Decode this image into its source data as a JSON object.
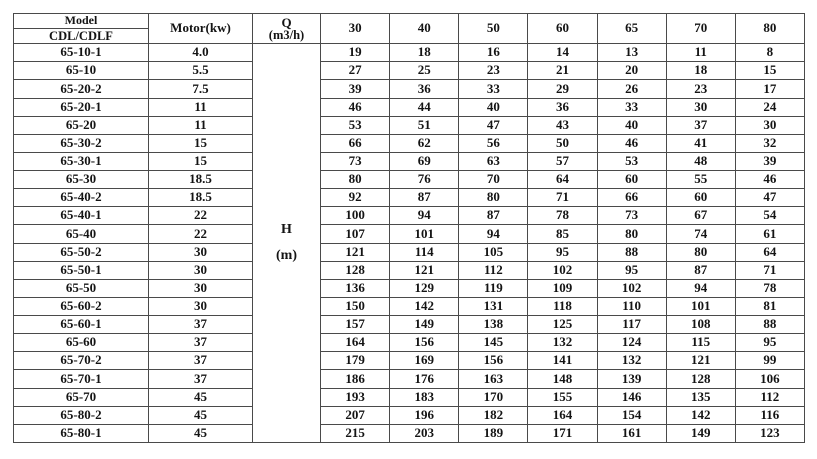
{
  "table": {
    "header": {
      "model_title": "Model",
      "model_subtitle": "CDL/CDLF",
      "motor_label": "Motor(kw)",
      "q_symbol": "Q",
      "q_unit": "(m3/h)",
      "flow_columns": [
        "30",
        "40",
        "50",
        "60",
        "65",
        "70",
        "80"
      ]
    },
    "head_cell": {
      "symbol": "H",
      "unit": "(m)"
    },
    "rows": [
      {
        "model": "65-10-1",
        "motor": "4.0",
        "values": [
          19,
          18,
          16,
          14,
          13,
          11,
          8
        ]
      },
      {
        "model": "65-10",
        "motor": "5.5",
        "values": [
          27,
          25,
          23,
          21,
          20,
          18,
          15
        ]
      },
      {
        "model": "65-20-2",
        "motor": "7.5",
        "values": [
          39,
          36,
          33,
          29,
          26,
          23,
          17
        ]
      },
      {
        "model": "65-20-1",
        "motor": "11",
        "values": [
          46,
          44,
          40,
          36,
          33,
          30,
          24
        ]
      },
      {
        "model": "65-20",
        "motor": "11",
        "values": [
          53,
          51,
          47,
          43,
          40,
          37,
          30
        ]
      },
      {
        "model": "65-30-2",
        "motor": "15",
        "values": [
          66,
          62,
          56,
          50,
          46,
          41,
          32
        ]
      },
      {
        "model": "65-30-1",
        "motor": "15",
        "values": [
          73,
          69,
          63,
          57,
          53,
          48,
          39
        ]
      },
      {
        "model": "65-30",
        "motor": "18.5",
        "values": [
          80,
          76,
          70,
          64,
          60,
          55,
          46
        ]
      },
      {
        "model": "65-40-2",
        "motor": "18.5",
        "values": [
          92,
          87,
          80,
          71,
          66,
          60,
          47
        ]
      },
      {
        "model": "65-40-1",
        "motor": "22",
        "values": [
          100,
          94,
          87,
          78,
          73,
          67,
          54
        ]
      },
      {
        "model": "65-40",
        "motor": "22",
        "values": [
          107,
          101,
          94,
          85,
          80,
          74,
          61
        ]
      },
      {
        "model": "65-50-2",
        "motor": "30",
        "values": [
          121,
          114,
          105,
          95,
          88,
          80,
          64
        ]
      },
      {
        "model": "65-50-1",
        "motor": "30",
        "values": [
          128,
          121,
          112,
          102,
          95,
          87,
          71
        ]
      },
      {
        "model": "65-50",
        "motor": "30",
        "values": [
          136,
          129,
          119,
          109,
          102,
          94,
          78
        ]
      },
      {
        "model": "65-60-2",
        "motor": "30",
        "values": [
          150,
          142,
          131,
          118,
          110,
          101,
          81
        ]
      },
      {
        "model": "65-60-1",
        "motor": "37",
        "values": [
          157,
          149,
          138,
          125,
          117,
          108,
          88
        ]
      },
      {
        "model": "65-60",
        "motor": "37",
        "values": [
          164,
          156,
          145,
          132,
          124,
          115,
          95
        ]
      },
      {
        "model": "65-70-2",
        "motor": "37",
        "values": [
          179,
          169,
          156,
          141,
          132,
          121,
          99
        ]
      },
      {
        "model": "65-70-1",
        "motor": "37",
        "values": [
          186,
          176,
          163,
          148,
          139,
          128,
          106
        ]
      },
      {
        "model": "65-70",
        "motor": "45",
        "values": [
          193,
          183,
          170,
          155,
          146,
          135,
          112
        ]
      },
      {
        "model": "65-80-2",
        "motor": "45",
        "values": [
          207,
          196,
          182,
          164,
          154,
          142,
          116
        ]
      },
      {
        "model": "65-80-1",
        "motor": "45",
        "values": [
          215,
          203,
          189,
          171,
          161,
          149,
          123
        ]
      }
    ]
  }
}
